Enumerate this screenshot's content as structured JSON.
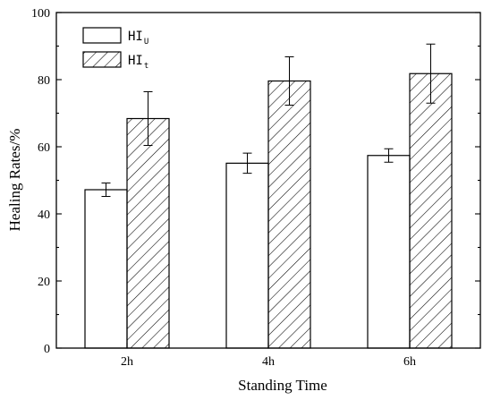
{
  "chart_data": {
    "type": "bar",
    "categories": [
      "2h",
      "4h",
      "6h"
    ],
    "series": [
      {
        "name": "HI",
        "subscript": "U",
        "values": [
          47.2,
          55.1,
          57.4
        ],
        "errors": [
          2.0,
          3.0,
          2.0
        ],
        "fill": "#ffffff",
        "pattern": "none"
      },
      {
        "name": "HI",
        "subscript": "t",
        "values": [
          68.4,
          79.6,
          81.8
        ],
        "errors": [
          8.0,
          7.2,
          8.8
        ],
        "fill": "#ffffff",
        "pattern": "diagonal-hatch"
      }
    ],
    "xlabel": "Standing Time",
    "ylabel": "Healing Rates/%",
    "ylim": [
      0,
      100
    ],
    "yticks": [
      0,
      20,
      40,
      60,
      80,
      100
    ],
    "grid": false,
    "legend": "top-left"
  }
}
